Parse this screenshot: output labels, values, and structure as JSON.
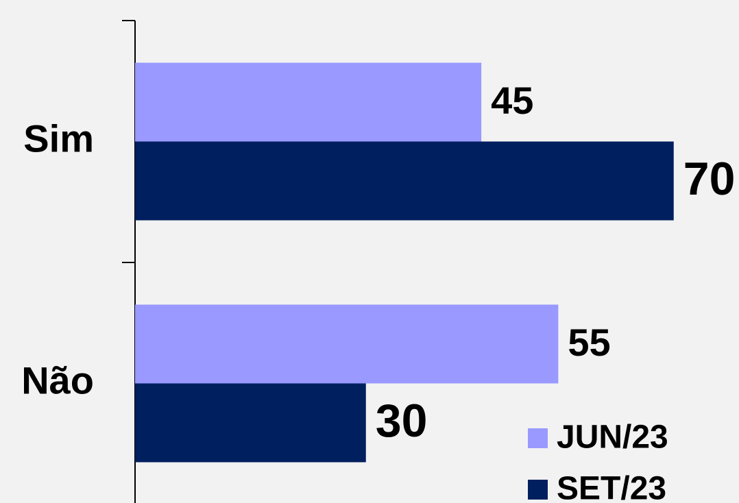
{
  "chart_data": {
    "type": "bar",
    "orientation": "horizontal",
    "categories": [
      "Sim",
      "Não"
    ],
    "series": [
      {
        "name": "JUN/23",
        "color": "#9999ff",
        "values": [
          45,
          55
        ]
      },
      {
        "name": "SET/23",
        "color": "#001f5f",
        "values": [
          70,
          30
        ]
      }
    ],
    "xlim": [
      0,
      80
    ],
    "legend": "bottom-right"
  }
}
